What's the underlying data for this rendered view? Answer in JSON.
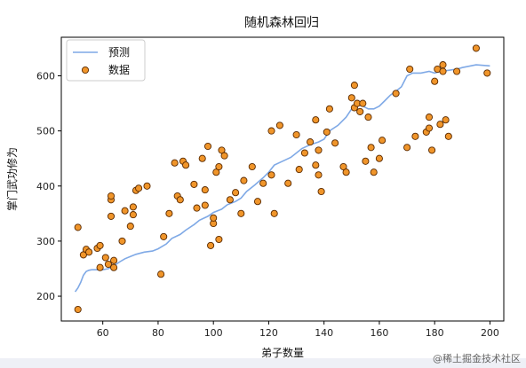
{
  "watermark": "@稀土掘金技术社区",
  "chart_data": {
    "type": "scatter",
    "title": "随机森林回归",
    "xlabel": "弟子数量",
    "ylabel": "掌门武功修为",
    "xlim": [
      45,
      205
    ],
    "ylim": [
      155,
      670
    ],
    "xticks": [
      60,
      80,
      100,
      120,
      140,
      160,
      180,
      200
    ],
    "yticks": [
      200,
      300,
      400,
      500,
      600
    ],
    "grid": false,
    "legend_placement": "top-left",
    "colors": {
      "line": "#7fa9e6",
      "point_fill": "#f0952a",
      "point_edge": "#5a2a00"
    },
    "series": [
      {
        "name": "预测",
        "type": "line",
        "x": [
          50,
          51,
          52,
          53,
          54,
          55,
          56,
          57,
          58,
          59,
          60,
          62,
          64,
          66,
          68,
          70,
          72,
          75,
          78,
          80,
          83,
          85,
          88,
          90,
          93,
          95,
          98,
          100,
          103,
          105,
          108,
          110,
          112,
          115,
          118,
          120,
          122,
          125,
          128,
          130,
          132,
          135,
          138,
          140,
          142,
          145,
          148,
          150,
          152,
          154,
          156,
          158,
          160,
          162,
          164,
          166,
          168,
          170,
          172,
          175,
          178,
          180,
          182,
          185,
          188,
          190,
          195,
          200
        ],
        "y": [
          208,
          215,
          225,
          238,
          245,
          247,
          248,
          248,
          248,
          250,
          248,
          250,
          255,
          262,
          268,
          272,
          276,
          280,
          282,
          286,
          295,
          305,
          312,
          320,
          330,
          338,
          345,
          352,
          358,
          366,
          372,
          378,
          390,
          402,
          415,
          425,
          438,
          445,
          452,
          460,
          468,
          475,
          480,
          485,
          500,
          510,
          525,
          540,
          548,
          545,
          540,
          540,
          545,
          555,
          565,
          572,
          580,
          600,
          605,
          605,
          608,
          605,
          608,
          610,
          612,
          615,
          620,
          618
        ]
      },
      {
        "name": "数据",
        "type": "scatter",
        "x": [
          51,
          51,
          53,
          54,
          55,
          58,
          59,
          59,
          61,
          62,
          63,
          63,
          63,
          64,
          64,
          67,
          68,
          70,
          71,
          71,
          72,
          73,
          76,
          81,
          82,
          84,
          86,
          87,
          88,
          89,
          90,
          93,
          94,
          96,
          97,
          97,
          98,
          99,
          100,
          100,
          101,
          102,
          102,
          103,
          104,
          106,
          108,
          110,
          111,
          114,
          116,
          118,
          121,
          121,
          122,
          124,
          127,
          130,
          131,
          133,
          135,
          137,
          137,
          138,
          138,
          139,
          141,
          142,
          144,
          147,
          148,
          150,
          151,
          151,
          152,
          153,
          154,
          155,
          156,
          157,
          158,
          160,
          161,
          166,
          170,
          171,
          173,
          177,
          178,
          178,
          179,
          180,
          181,
          182,
          183,
          183,
          184,
          185,
          188,
          195,
          199
        ],
        "y": [
          325,
          176,
          275,
          285,
          280,
          287,
          252,
          292,
          270,
          258,
          345,
          375,
          382,
          265,
          252,
          300,
          355,
          327,
          362,
          348,
          392,
          396,
          400,
          240,
          308,
          350,
          442,
          382,
          375,
          445,
          438,
          403,
          360,
          450,
          393,
          365,
          472,
          292,
          332,
          342,
          425,
          303,
          435,
          465,
          455,
          375,
          388,
          350,
          410,
          435,
          372,
          405,
          420,
          500,
          350,
          510,
          405,
          493,
          430,
          460,
          480,
          438,
          520,
          465,
          420,
          390,
          498,
          540,
          478,
          435,
          425,
          560,
          583,
          542,
          550,
          535,
          550,
          445,
          525,
          470,
          425,
          450,
          483,
          568,
          470,
          612,
          490,
          498,
          505,
          525,
          465,
          590,
          612,
          512,
          620,
          608,
          520,
          490,
          608,
          650,
          605
        ]
      }
    ]
  }
}
